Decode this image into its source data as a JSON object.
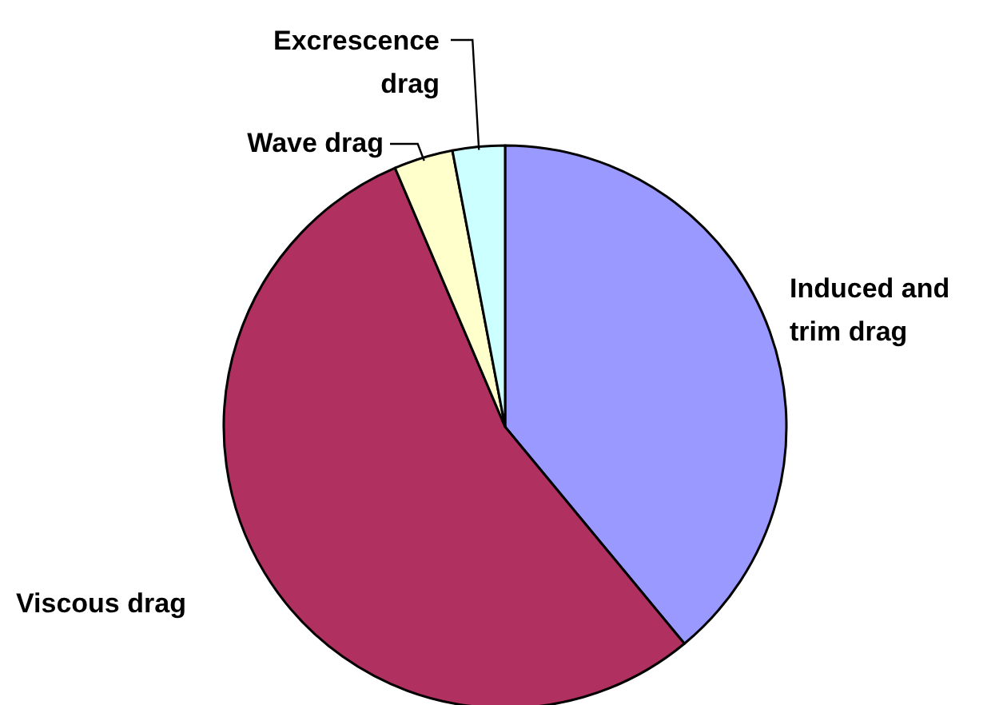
{
  "chart_data": {
    "type": "pie",
    "categories": [
      "Induced and trim drag",
      "Viscous drag",
      "Wave drag",
      "Excrescence drag"
    ],
    "values": [
      39,
      54.6,
      3.4,
      3
    ],
    "colors": [
      "#9999ff",
      "#b0305f",
      "#ffffcc",
      "#ccffff"
    ]
  }
}
